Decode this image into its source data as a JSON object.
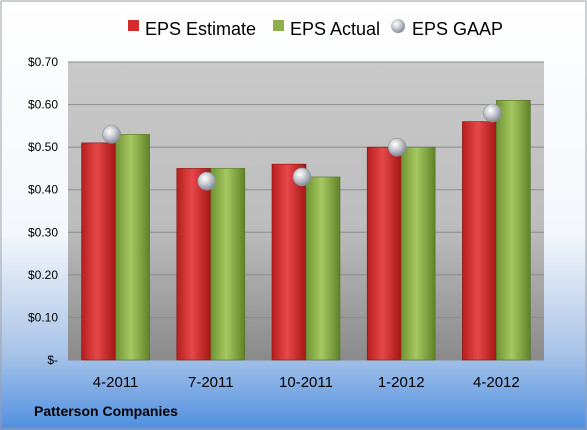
{
  "chart_data": {
    "type": "bar",
    "categories": [
      "4-2011",
      "7-2011",
      "10-2011",
      "1-2012",
      "4-2012"
    ],
    "series": [
      {
        "name": "EPS Estimate",
        "values": [
          0.51,
          0.45,
          0.46,
          0.5,
          0.56
        ],
        "color": "#d42a2a"
      },
      {
        "name": "EPS Actual",
        "values": [
          0.53,
          0.45,
          0.43,
          0.5,
          0.61
        ],
        "color": "#8db04a"
      }
    ],
    "markers": {
      "name": "EPS GAAP",
      "values": [
        0.53,
        0.42,
        0.43,
        0.5,
        0.58
      ],
      "color": "#b8bcc4"
    },
    "y_ticks": [
      {
        "value": 0.0,
        "label": "$-"
      },
      {
        "value": 0.1,
        "label": "$0.10"
      },
      {
        "value": 0.2,
        "label": "$0.20"
      },
      {
        "value": 0.3,
        "label": "$0.30"
      },
      {
        "value": 0.4,
        "label": "$0.40"
      },
      {
        "value": 0.5,
        "label": "$0.50"
      },
      {
        "value": 0.6,
        "label": "$0.60"
      },
      {
        "value": 0.7,
        "label": "$0.70"
      }
    ],
    "ylim": [
      0,
      0.7
    ],
    "grid": true,
    "legend_position": "top",
    "caption": "Patterson Companies"
  }
}
